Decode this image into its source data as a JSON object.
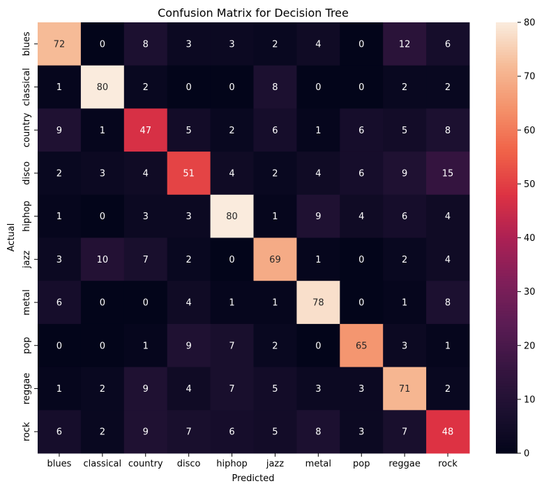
{
  "chart_data": {
    "type": "heatmap",
    "title": "Confusion Matrix for Decision Tree",
    "xlabel": "Predicted",
    "ylabel": "Actual",
    "x_categories": [
      "blues",
      "classical",
      "country",
      "disco",
      "hiphop",
      "jazz",
      "metal",
      "pop",
      "reggae",
      "rock"
    ],
    "y_categories": [
      "blues",
      "classical",
      "country",
      "disco",
      "hiphop",
      "jazz",
      "metal",
      "pop",
      "reggae",
      "rock"
    ],
    "values": [
      [
        72,
        0,
        8,
        3,
        3,
        2,
        4,
        0,
        12,
        6
      ],
      [
        1,
        80,
        2,
        0,
        0,
        8,
        0,
        0,
        2,
        2
      ],
      [
        9,
        1,
        47,
        5,
        2,
        6,
        1,
        6,
        5,
        8
      ],
      [
        2,
        3,
        4,
        51,
        4,
        2,
        4,
        6,
        9,
        15
      ],
      [
        1,
        0,
        3,
        3,
        80,
        1,
        9,
        4,
        6,
        4
      ],
      [
        3,
        10,
        7,
        2,
        0,
        69,
        1,
        0,
        2,
        4
      ],
      [
        6,
        0,
        0,
        4,
        1,
        1,
        78,
        0,
        1,
        8
      ],
      [
        0,
        0,
        1,
        9,
        7,
        2,
        0,
        65,
        3,
        1
      ],
      [
        1,
        2,
        9,
        4,
        7,
        5,
        3,
        3,
        71,
        2
      ],
      [
        6,
        2,
        9,
        7,
        6,
        5,
        8,
        3,
        7,
        48
      ]
    ],
    "colorbar": {
      "range": [
        0,
        80
      ],
      "ticks": [
        0,
        10,
        20,
        30,
        40,
        50,
        60,
        70,
        80
      ]
    },
    "colormap": "rocket",
    "grid": false,
    "legend": "none"
  }
}
